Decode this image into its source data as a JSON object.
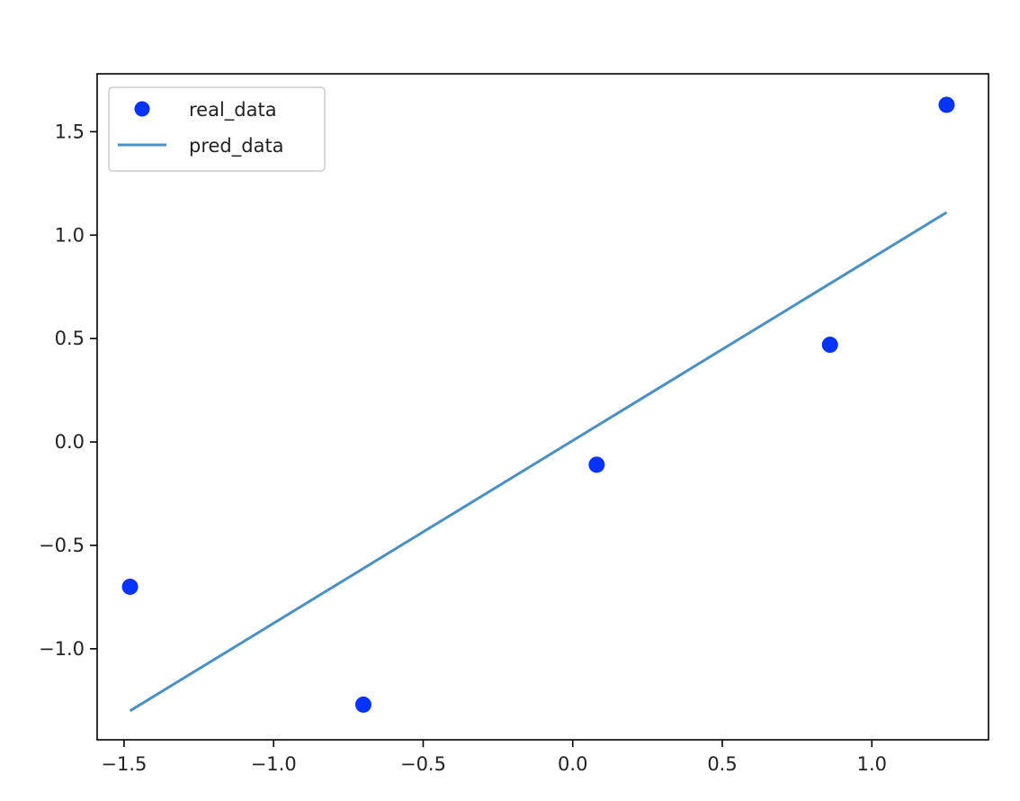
{
  "chart_data": {
    "type": "scatter",
    "title": "",
    "xlabel": "",
    "ylabel": "",
    "xlim": [
      -1.59,
      1.39
    ],
    "ylim": [
      -1.44,
      1.78
    ],
    "grid": false,
    "legend_position": "upper-left",
    "xticks": [
      -1.5,
      -1.0,
      -0.5,
      0.0,
      0.5,
      1.0
    ],
    "xtick_labels": [
      "−1.5",
      "−1.0",
      "−0.5",
      "0.0",
      "0.5",
      "1.0"
    ],
    "yticks": [
      -1.0,
      -0.5,
      0.0,
      0.5,
      1.0,
      1.5
    ],
    "ytick_labels": [
      "−1.0",
      "−0.5",
      "0.0",
      "0.5",
      "1.0",
      "1.5"
    ],
    "series": [
      {
        "name": "real_data",
        "kind": "scatter",
        "color": "#0433ff",
        "points": [
          {
            "x": -1.48,
            "y": -0.7
          },
          {
            "x": -0.7,
            "y": -1.27
          },
          {
            "x": 0.08,
            "y": -0.11
          },
          {
            "x": 0.86,
            "y": 0.47
          },
          {
            "x": 1.25,
            "y": 1.63
          }
        ]
      },
      {
        "name": "pred_data",
        "kind": "line",
        "color": "#4a90c4",
        "points": [
          {
            "x": -1.48,
            "y": -1.3
          },
          {
            "x": 1.25,
            "y": 1.11
          }
        ]
      }
    ]
  }
}
